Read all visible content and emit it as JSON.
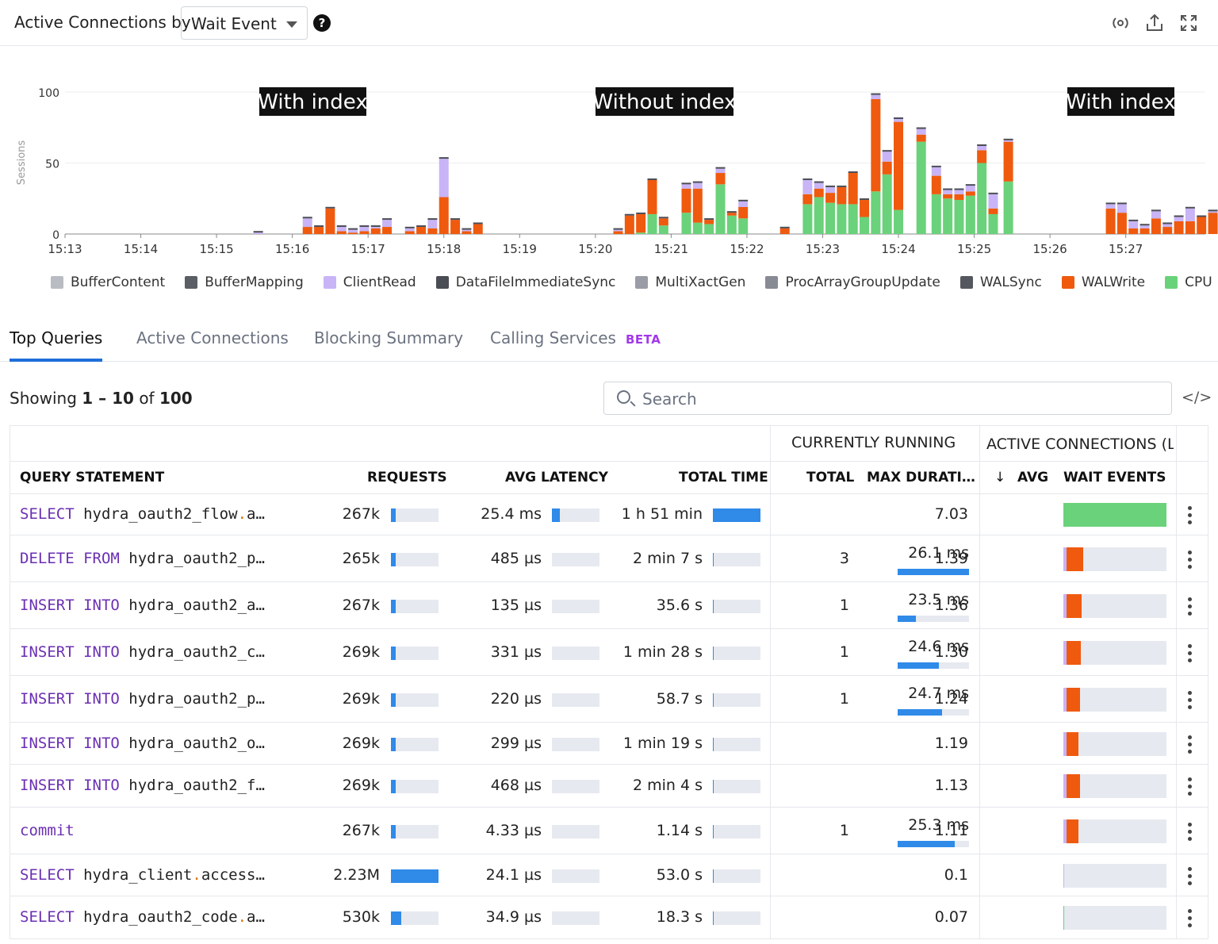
{
  "header": {
    "title": "Active Connections by",
    "dropdown_value": "Wait Event",
    "help": "?"
  },
  "chart_data": {
    "type": "bar",
    "stacked": true,
    "ylabel": "Sessions",
    "ylim": [
      0,
      100
    ],
    "yticks": [
      "0",
      "50",
      "100"
    ],
    "xticks": [
      "15:13",
      "15:14",
      "15:15",
      "15:16",
      "15:17",
      "15:18",
      "15:19",
      "15:20",
      "15:21",
      "15:22",
      "15:23",
      "15:24",
      "15:25",
      "15:26",
      "15:27"
    ],
    "annotations": [
      "With index",
      "Without index",
      "With index"
    ],
    "legend": [
      {
        "name": "BufferContent",
        "color": "#b9bcc3"
      },
      {
        "name": "BufferMapping",
        "color": "#5c5e66"
      },
      {
        "name": "ClientRead",
        "color": "#c8b4f6"
      },
      {
        "name": "DataFileImmediateSync",
        "color": "#4b4d55"
      },
      {
        "name": "MultiXactGen",
        "color": "#9a9da6"
      },
      {
        "name": "ProcArrayGroupUpdate",
        "color": "#888b94"
      },
      {
        "name": "WALSync",
        "color": "#55575f"
      },
      {
        "name": "WALWrite",
        "color": "#ef5a0e"
      },
      {
        "name": "CPU",
        "color": "#6ad27a"
      }
    ],
    "bars": [
      {
        "t": 15.55,
        "WALWrite": 0,
        "CPU": 0,
        "ClientRead": 1
      },
      {
        "t": 16.2,
        "WALWrite": 5,
        "CPU": 0,
        "ClientRead": 6
      },
      {
        "t": 16.35,
        "WALWrite": 5,
        "CPU": 0,
        "ClientRead": 0
      },
      {
        "t": 16.5,
        "WALWrite": 18,
        "CPU": 0,
        "ClientRead": 0
      },
      {
        "t": 16.65,
        "WALWrite": 2,
        "CPU": 0,
        "ClientRead": 3
      },
      {
        "t": 16.8,
        "WALWrite": 1,
        "CPU": 0,
        "ClientRead": 2
      },
      {
        "t": 16.95,
        "WALWrite": 2,
        "CPU": 0,
        "ClientRead": 3
      },
      {
        "t": 17.1,
        "WALWrite": 4,
        "CPU": 0,
        "ClientRead": 1
      },
      {
        "t": 17.25,
        "WALWrite": 5,
        "CPU": 0,
        "ClientRead": 5
      },
      {
        "t": 17.55,
        "WALWrite": 2,
        "CPU": 0,
        "ClientRead": 2
      },
      {
        "t": 17.7,
        "WALWrite": 5,
        "CPU": 0,
        "ClientRead": 0
      },
      {
        "t": 17.85,
        "WALWrite": 4,
        "CPU": 0,
        "ClientRead": 6
      },
      {
        "t": 18.0,
        "WALWrite": 26,
        "CPU": 0,
        "ClientRead": 27
      },
      {
        "t": 18.15,
        "WALWrite": 10,
        "CPU": 0,
        "ClientRead": 0
      },
      {
        "t": 18.3,
        "WALWrite": 2,
        "CPU": 0,
        "ClientRead": 1
      },
      {
        "t": 18.45,
        "WALWrite": 7,
        "CPU": 0,
        "ClientRead": 0
      },
      {
        "t": 20.3,
        "WALWrite": 2,
        "CPU": 0,
        "ClientRead": 1
      },
      {
        "t": 20.45,
        "WALWrite": 13,
        "CPU": 0,
        "ClientRead": 0
      },
      {
        "t": 20.6,
        "WALWrite": 13,
        "CPU": 1,
        "ClientRead": 0
      },
      {
        "t": 20.75,
        "WALWrite": 24,
        "CPU": 14,
        "ClientRead": 0
      },
      {
        "t": 20.9,
        "WALWrite": 5,
        "CPU": 6,
        "ClientRead": 0
      },
      {
        "t": 21.2,
        "WALWrite": 17,
        "CPU": 15,
        "ClientRead": 3
      },
      {
        "t": 21.35,
        "WALWrite": 24,
        "CPU": 8,
        "ClientRead": 4
      },
      {
        "t": 21.5,
        "WALWrite": 3,
        "CPU": 7,
        "ClientRead": 0
      },
      {
        "t": 21.65,
        "WALWrite": 8,
        "CPU": 35,
        "ClientRead": 3
      },
      {
        "t": 21.8,
        "WALWrite": 2,
        "CPU": 13,
        "ClientRead": 0
      },
      {
        "t": 21.95,
        "WALWrite": 8,
        "CPU": 11,
        "ClientRead": 4
      },
      {
        "t": 22.5,
        "WALWrite": 4,
        "CPU": 0,
        "ClientRead": 0
      },
      {
        "t": 22.8,
        "WALWrite": 7,
        "CPU": 21,
        "ClientRead": 10
      },
      {
        "t": 22.95,
        "WALWrite": 6,
        "CPU": 26,
        "ClientRead": 4
      },
      {
        "t": 23.1,
        "WALWrite": 7,
        "CPU": 22,
        "ClientRead": 4
      },
      {
        "t": 23.25,
        "WALWrite": 12,
        "CPU": 21,
        "ClientRead": 0
      },
      {
        "t": 23.4,
        "WALWrite": 22,
        "CPU": 21,
        "ClientRead": 0
      },
      {
        "t": 23.55,
        "WALWrite": 12,
        "CPU": 12,
        "ClientRead": 0
      },
      {
        "t": 23.7,
        "WALWrite": 65,
        "CPU": 30,
        "ClientRead": 3
      },
      {
        "t": 23.85,
        "WALWrite": 9,
        "CPU": 42,
        "ClientRead": 7
      },
      {
        "t": 24.0,
        "WALWrite": 62,
        "CPU": 17,
        "ClientRead": 2
      },
      {
        "t": 24.3,
        "WALWrite": 5,
        "CPU": 65,
        "ClientRead": 4
      },
      {
        "t": 24.5,
        "WALWrite": 13,
        "CPU": 28,
        "ClientRead": 6
      },
      {
        "t": 24.65,
        "WALWrite": 3,
        "CPU": 25,
        "ClientRead": 3
      },
      {
        "t": 24.8,
        "WALWrite": 4,
        "CPU": 24,
        "ClientRead": 3
      },
      {
        "t": 24.95,
        "WALWrite": 3,
        "CPU": 27,
        "ClientRead": 4
      },
      {
        "t": 25.1,
        "WALWrite": 9,
        "CPU": 50,
        "ClientRead": 3
      },
      {
        "t": 25.25,
        "WALWrite": 4,
        "CPU": 14,
        "ClientRead": 10
      },
      {
        "t": 25.45,
        "WALWrite": 28,
        "CPU": 37,
        "ClientRead": 1
      },
      {
        "t": 26.8,
        "WALWrite": 18,
        "CPU": 0,
        "ClientRead": 3
      },
      {
        "t": 26.95,
        "WALWrite": 15,
        "CPU": 0,
        "ClientRead": 6
      },
      {
        "t": 27.1,
        "WALWrite": 4,
        "CPU": 0,
        "ClientRead": 5
      },
      {
        "t": 27.25,
        "WALWrite": 4,
        "CPU": 0,
        "ClientRead": 2
      },
      {
        "t": 27.4,
        "WALWrite": 11,
        "CPU": 0,
        "ClientRead": 5
      },
      {
        "t": 27.55,
        "WALWrite": 5,
        "CPU": 0,
        "ClientRead": 2
      },
      {
        "t": 27.7,
        "WALWrite": 9,
        "CPU": 0,
        "ClientRead": 3
      },
      {
        "t": 27.85,
        "WALWrite": 9,
        "CPU": 0,
        "ClientRead": 9
      },
      {
        "t": 28.0,
        "WALWrite": 12,
        "CPU": 0,
        "ClientRead": 0
      },
      {
        "t": 28.15,
        "WALWrite": 15,
        "CPU": 0,
        "ClientRead": 1
      },
      {
        "t": 28.3,
        "WALWrite": 8,
        "CPU": 0,
        "ClientRead": 21
      },
      {
        "t": 28.45,
        "WALWrite": 18,
        "CPU": 0,
        "ClientRead": 0
      },
      {
        "t": 28.6,
        "WALWrite": 15,
        "CPU": 0,
        "ClientRead": 0
      }
    ]
  },
  "tabs": [
    {
      "label": "Top Queries"
    },
    {
      "label": "Active Connections"
    },
    {
      "label": "Blocking Summary"
    },
    {
      "label": "Calling Services"
    }
  ],
  "beta_label": "BETA",
  "showing": {
    "prefix": "Showing",
    "range": "1 – 10",
    "of": "of",
    "total": "100"
  },
  "search": {
    "placeholder": "Search"
  },
  "code_icon": "</>",
  "table": {
    "group_current": "CURRENTLY RUNNING",
    "group_active": "ACTIVE CONNECTIONS (L",
    "headers": {
      "query": "QUERY STATEMENT",
      "requests": "REQUESTS",
      "avg_latency": "AVG LATENCY",
      "total_time": "TOTAL TIME",
      "total": "TOTAL",
      "max_duration": "MAX DURATI…",
      "avg_arrow": "↓",
      "avg": "AVG",
      "wait_events": "WAIT EVENTS"
    },
    "rows": [
      {
        "kw": "SELECT",
        "rest": "hydra_oauth2_flow",
        "dot": ".",
        "tail": "a…",
        "requests": "267k",
        "req_frac": 0.1,
        "latency": "25.4 ms",
        "lat_frac": 0.17,
        "total_time": "1 h 51 min",
        "tt_frac": 1.0,
        "running": "",
        "max_dur": "",
        "dur_frac": 0,
        "avg": "7.03",
        "we_cpu": 1.0,
        "we_wal": 0,
        "we_cr": 0
      },
      {
        "kw": "DELETE FROM",
        "rest": "hydra_oauth2_p…",
        "dot": "",
        "tail": "",
        "requests": "265k",
        "req_frac": 0.1,
        "latency": "485 µs",
        "lat_frac": 0,
        "total_time": "2 min 7 s",
        "tt_frac": 0.02,
        "running": "3",
        "max_dur": "26.1 ms",
        "dur_frac": 1.0,
        "avg": "1.39",
        "we_cpu": 0,
        "we_wal": 0.16,
        "we_cr": 0.03
      },
      {
        "kw": "INSERT INTO",
        "rest": "hydra_oauth2_a…",
        "dot": "",
        "tail": "",
        "requests": "267k",
        "req_frac": 0.1,
        "latency": "135 µs",
        "lat_frac": 0,
        "total_time": "35.6 s",
        "tt_frac": 0.01,
        "running": "1",
        "max_dur": "23.5 ms",
        "dur_frac": 0.26,
        "avg": "1.36",
        "we_cpu": 0,
        "we_wal": 0.15,
        "we_cr": 0.03
      },
      {
        "kw": "INSERT INTO",
        "rest": "hydra_oauth2_c…",
        "dot": "",
        "tail": "",
        "requests": "269k",
        "req_frac": 0.1,
        "latency": "331 µs",
        "lat_frac": 0,
        "total_time": "1 min 28 s",
        "tt_frac": 0.01,
        "running": "1",
        "max_dur": "24.6 ms",
        "dur_frac": 0.58,
        "avg": "1.30",
        "we_cpu": 0,
        "we_wal": 0.14,
        "we_cr": 0.03
      },
      {
        "kw": "INSERT INTO",
        "rest": "hydra_oauth2_p…",
        "dot": "",
        "tail": "",
        "requests": "269k",
        "req_frac": 0.1,
        "latency": "220 µs",
        "lat_frac": 0,
        "total_time": "58.7 s",
        "tt_frac": 0.01,
        "running": "1",
        "max_dur": "24.7 ms",
        "dur_frac": 0.62,
        "avg": "1.24",
        "we_cpu": 0,
        "we_wal": 0.13,
        "we_cr": 0.03
      },
      {
        "kw": "INSERT INTO",
        "rest": "hydra_oauth2_o…",
        "dot": "",
        "tail": "",
        "requests": "269k",
        "req_frac": 0.1,
        "latency": "299 µs",
        "lat_frac": 0,
        "total_time": "1 min 19 s",
        "tt_frac": 0.01,
        "running": "",
        "max_dur": "",
        "dur_frac": 0,
        "avg": "1.19",
        "we_cpu": 0,
        "we_wal": 0.12,
        "we_cr": 0.03
      },
      {
        "kw": "INSERT INTO",
        "rest": "hydra_oauth2_f…",
        "dot": "",
        "tail": "",
        "requests": "269k",
        "req_frac": 0.1,
        "latency": "468 µs",
        "lat_frac": 0,
        "total_time": "2 min 4 s",
        "tt_frac": 0.01,
        "running": "",
        "max_dur": "",
        "dur_frac": 0,
        "avg": "1.13",
        "we_cpu": 0,
        "we_wal": 0.13,
        "we_cr": 0.03
      },
      {
        "kw": "commit",
        "rest": "",
        "dot": "",
        "tail": "",
        "requests": "267k",
        "req_frac": 0.1,
        "latency": "4.33 µs",
        "lat_frac": 0,
        "total_time": "1.14 s",
        "tt_frac": 0.01,
        "running": "1",
        "max_dur": "25.3 ms",
        "dur_frac": 0.8,
        "avg": "1.11",
        "we_cpu": 0,
        "we_wal": 0.12,
        "we_cr": 0.03
      },
      {
        "kw": "SELECT",
        "rest": "hydra_client",
        "dot": ".",
        "tail": "access…",
        "requests": "2.23M",
        "req_frac": 1.0,
        "latency": "24.1 µs",
        "lat_frac": 0,
        "total_time": "53.0 s",
        "tt_frac": 0.01,
        "running": "",
        "max_dur": "",
        "dur_frac": 0,
        "avg": "0.1",
        "we_cpu": 0,
        "we_wal": 0,
        "we_cr": 0.01
      },
      {
        "kw": "SELECT",
        "rest": "hydra_oauth2_code",
        "dot": ".",
        "tail": "a…",
        "requests": "530k",
        "req_frac": 0.22,
        "latency": "34.9 µs",
        "lat_frac": 0,
        "total_time": "18.3 s",
        "tt_frac": 0.01,
        "running": "",
        "max_dur": "",
        "dur_frac": 0,
        "avg": "0.07",
        "we_cpu": 0.01,
        "we_wal": 0,
        "we_cr": 0
      }
    ]
  },
  "icons": {
    "share": "share-icon",
    "export": "export-icon",
    "expand": "expand-icon",
    "search": "search-icon",
    "kebab": "kebab-menu-icon"
  }
}
